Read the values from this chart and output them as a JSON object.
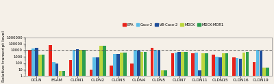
{
  "categories": [
    "OCLN",
    "ESAM",
    "CLDN1",
    "CLDN2",
    "CLDN3",
    "CLDN4",
    "CLDN5",
    "CLDN7",
    "CLDN11",
    "CLDN15",
    "CLDN16",
    "CLDN19"
  ],
  "series": [
    {
      "name": "EPA",
      "color": "#e8231b",
      "values": [
        12000,
        65000,
        280,
        10,
        40,
        90,
        22000,
        3200,
        3500,
        1800,
        700,
        130
      ]
    },
    {
      "name": "Caco-2",
      "color": "#5bbde8",
      "values": [
        20000,
        130,
        10000,
        700,
        2500,
        10500,
        10000,
        4000,
        4500,
        900,
        600,
        10000
      ]
    },
    {
      "name": "VB-Caco-2",
      "color": "#1f4e9a",
      "values": [
        22000,
        90,
        14000,
        800,
        2800,
        9000,
        9000,
        5000,
        7,
        700,
        450,
        9000
      ]
    },
    {
      "name": "MDCK",
      "color": "#bcd63e",
      "values": [
        2000,
        6,
        10000,
        55000,
        4000,
        5000,
        7,
        5000,
        3500,
        3000,
        4500,
        20
      ]
    },
    {
      "name": "MDCK-MDR1",
      "color": "#2d9e50",
      "values": [
        1800,
        5,
        11000,
        50000,
        4500,
        5500,
        7,
        5000,
        3500,
        3000,
        5000,
        18
      ]
    }
  ],
  "ylabel": "Relative transcript level",
  "ylim_log_min": 1,
  "ylim_log_max": 1000000,
  "dashed_line_y": 10000,
  "bg_color": "#f5f0e8",
  "plot_bg_color": "#f5f0e8"
}
